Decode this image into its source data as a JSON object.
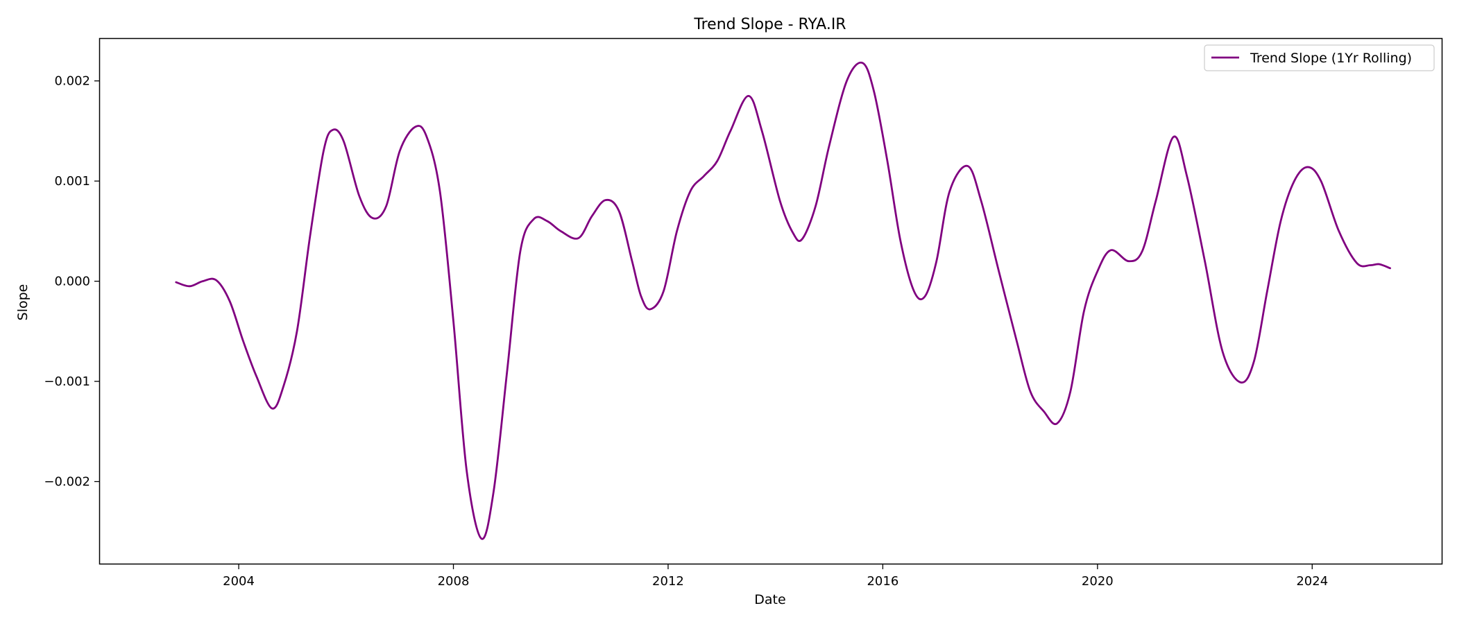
{
  "chart_data": {
    "type": "line",
    "title": "Trend Slope - RYA.IR",
    "xlabel": "Date",
    "ylabel": "Slope",
    "xlim": [
      "2001-06-01",
      "2026-06-01"
    ],
    "ylim": [
      -0.00282,
      0.00242
    ],
    "x_ticks": [
      "2004",
      "2008",
      "2012",
      "2016",
      "2020",
      "2024"
    ],
    "y_ticks": [
      "−0.002",
      "−0.001",
      "0.000",
      "0.001",
      "0.002"
    ],
    "grid": false,
    "legend_position": "top-right",
    "series": [
      {
        "name": "Trend Slope (1Yr Rolling)",
        "color": "#800080",
        "points": [
          [
            "2002-11-01",
            -1e-05
          ],
          [
            "2003-02-01",
            -5e-05
          ],
          [
            "2003-05-01",
            0.0
          ],
          [
            "2003-08-01",
            1e-05
          ],
          [
            "2003-11-01",
            -0.0002
          ],
          [
            "2004-02-01",
            -0.0006
          ],
          [
            "2004-05-01",
            -0.00095
          ],
          [
            "2004-08-15",
            -0.00127
          ],
          [
            "2004-11-01",
            -0.00105
          ],
          [
            "2005-02-01",
            -0.0005
          ],
          [
            "2005-05-01",
            0.00045
          ],
          [
            "2005-08-01",
            0.0013
          ],
          [
            "2005-10-01",
            0.00151
          ],
          [
            "2005-12-15",
            0.0014
          ],
          [
            "2006-04-01",
            0.00085
          ],
          [
            "2006-07-01",
            0.00063
          ],
          [
            "2006-10-01",
            0.00075
          ],
          [
            "2007-01-01",
            0.0013
          ],
          [
            "2007-04-15",
            0.00154
          ],
          [
            "2007-07-01",
            0.00145
          ],
          [
            "2007-10-01",
            0.0009
          ],
          [
            "2008-01-01",
            -0.0004
          ],
          [
            "2008-04-01",
            -0.0019
          ],
          [
            "2008-07-10",
            -0.00257
          ],
          [
            "2008-10-01",
            -0.0021
          ],
          [
            "2009-01-01",
            -0.0009
          ],
          [
            "2009-04-01",
            0.0003
          ],
          [
            "2009-07-01",
            0.00062
          ],
          [
            "2009-10-01",
            0.0006
          ],
          [
            "2010-01-01",
            0.0005
          ],
          [
            "2010-05-01",
            0.00043
          ],
          [
            "2010-08-01",
            0.00065
          ],
          [
            "2010-11-01",
            0.00081
          ],
          [
            "2011-02-01",
            0.0007
          ],
          [
            "2011-05-01",
            0.0002
          ],
          [
            "2011-07-01",
            -0.00015
          ],
          [
            "2011-09-01",
            -0.00028
          ],
          [
            "2011-12-01",
            -0.0001
          ],
          [
            "2012-03-01",
            0.0005
          ],
          [
            "2012-06-01",
            0.0009
          ],
          [
            "2012-09-01",
            0.00105
          ],
          [
            "2012-12-01",
            0.0012
          ],
          [
            "2013-03-01",
            0.0015
          ],
          [
            "2013-07-01",
            0.00185
          ],
          [
            "2013-10-01",
            0.0015
          ],
          [
            "2014-02-01",
            0.0008
          ],
          [
            "2014-05-01",
            0.00048
          ],
          [
            "2014-07-01",
            0.00042
          ],
          [
            "2014-10-01",
            0.00075
          ],
          [
            "2015-01-01",
            0.00135
          ],
          [
            "2015-05-01",
            0.002
          ],
          [
            "2015-08-15",
            0.00218
          ],
          [
            "2015-11-01",
            0.0019
          ],
          [
            "2016-02-01",
            0.0012
          ],
          [
            "2016-05-01",
            0.0004
          ],
          [
            "2016-08-01",
            -0.0001
          ],
          [
            "2016-10-15",
            -0.00015
          ],
          [
            "2017-01-01",
            0.0002
          ],
          [
            "2017-04-01",
            0.0009
          ],
          [
            "2017-08-01",
            0.00115
          ],
          [
            "2017-11-01",
            0.0008
          ],
          [
            "2018-03-01",
            0.0001
          ],
          [
            "2018-07-01",
            -0.0006
          ],
          [
            "2018-10-01",
            -0.0011
          ],
          [
            "2019-01-01",
            -0.0013
          ],
          [
            "2019-04-01",
            -0.00142
          ],
          [
            "2019-07-01",
            -0.0011
          ],
          [
            "2019-10-01",
            -0.0003
          ],
          [
            "2020-01-01",
            0.0001
          ],
          [
            "2020-04-01",
            0.00031
          ],
          [
            "2020-08-01",
            0.0002
          ],
          [
            "2020-11-01",
            0.0003
          ],
          [
            "2021-02-01",
            0.0008
          ],
          [
            "2021-06-01",
            0.00144
          ],
          [
            "2021-09-01",
            0.00105
          ],
          [
            "2022-01-01",
            0.0002
          ],
          [
            "2022-05-01",
            -0.0007
          ],
          [
            "2022-09-01",
            -0.00101
          ],
          [
            "2022-12-01",
            -0.0008
          ],
          [
            "2023-03-01",
            -0.0001
          ],
          [
            "2023-06-01",
            0.0006
          ],
          [
            "2023-09-01",
            0.001
          ],
          [
            "2023-12-01",
            0.00114
          ],
          [
            "2024-03-01",
            0.001
          ],
          [
            "2024-07-01",
            0.0005
          ],
          [
            "2024-11-01",
            0.00018
          ],
          [
            "2025-02-01",
            0.00016
          ],
          [
            "2025-04-01",
            0.00017
          ],
          [
            "2025-06-15",
            0.00013
          ]
        ]
      }
    ]
  }
}
